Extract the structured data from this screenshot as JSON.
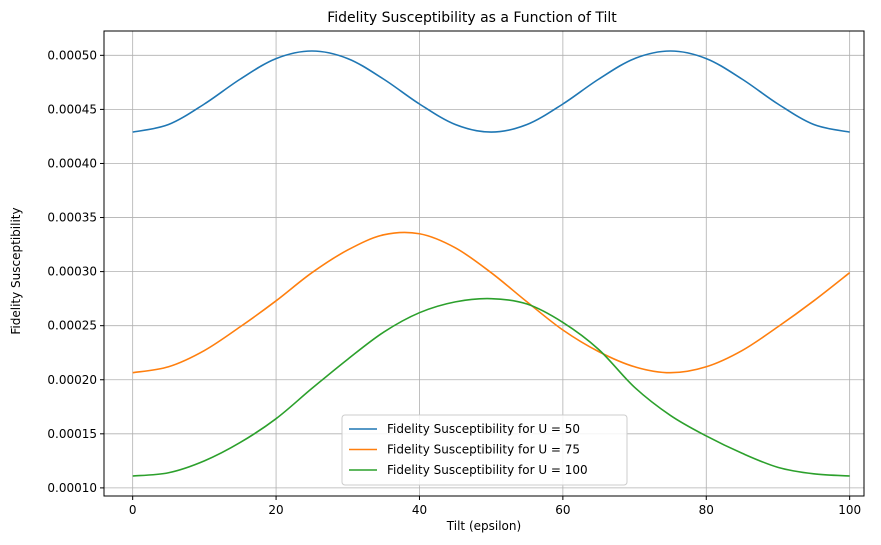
{
  "chart_data": {
    "type": "line",
    "title": "Fidelity Susceptibility as a Function of Tilt",
    "xlabel": "Tilt (epsilon)",
    "ylabel": "Fidelity Susceptibility",
    "xlim": [
      -4,
      102
    ],
    "ylim": [
      9.25e-05,
      0.0005225
    ],
    "xticks": [
      0,
      20,
      40,
      60,
      80,
      100
    ],
    "yticks": [
      0.0001,
      0.00015,
      0.0002,
      0.00025,
      0.0003,
      0.00035,
      0.0004,
      0.00045,
      0.0005
    ],
    "xtick_labels": [
      "0",
      "20",
      "40",
      "60",
      "80",
      "100"
    ],
    "ytick_labels": [
      "0.00010",
      "0.00015",
      "0.00020",
      "0.00025",
      "0.00030",
      "0.00035",
      "0.00040",
      "0.00045",
      "0.00050"
    ],
    "grid": true,
    "legend_position": "bottom-center",
    "x": [
      0,
      5,
      10,
      15,
      20,
      25,
      30,
      35,
      40,
      45,
      50,
      55,
      60,
      65,
      70,
      75,
      80,
      85,
      90,
      95,
      100
    ],
    "series": [
      {
        "name": "Fidelity Susceptibility for U = 50",
        "color": "#1f77b4",
        "values": [
          0.000429,
          0.000436,
          0.000455,
          0.000478,
          0.000497,
          0.000504,
          0.000497,
          0.000478,
          0.000455,
          0.000436,
          0.000429,
          0.000436,
          0.000455,
          0.000478,
          0.000497,
          0.000504,
          0.000497,
          0.000478,
          0.000455,
          0.000436,
          0.000429
        ]
      },
      {
        "name": "Fidelity Susceptibility for U = 75",
        "color": "#ff7f0e",
        "values": [
          0.0002065,
          0.000212,
          0.000227,
          0.000249,
          0.000273,
          0.000299,
          0.00032,
          0.000334,
          0.000335,
          0.000322,
          0.000299,
          0.000272,
          0.000246,
          0.000226,
          0.000212,
          0.0002065,
          0.000212,
          0.000227,
          0.000249,
          0.000273,
          0.000299
        ]
      },
      {
        "name": "Fidelity Susceptibility for U = 100",
        "color": "#2ca02c",
        "values": [
          0.000111,
          0.000114,
          0.000125,
          0.000142,
          0.000164,
          0.000192,
          0.000219,
          0.000244,
          0.000262,
          0.000272,
          0.000275,
          0.00027,
          0.000253,
          0.000228,
          0.000193,
          0.000167,
          0.000148,
          0.000132,
          0.000119,
          0.000113,
          0.000111
        ]
      }
    ]
  }
}
